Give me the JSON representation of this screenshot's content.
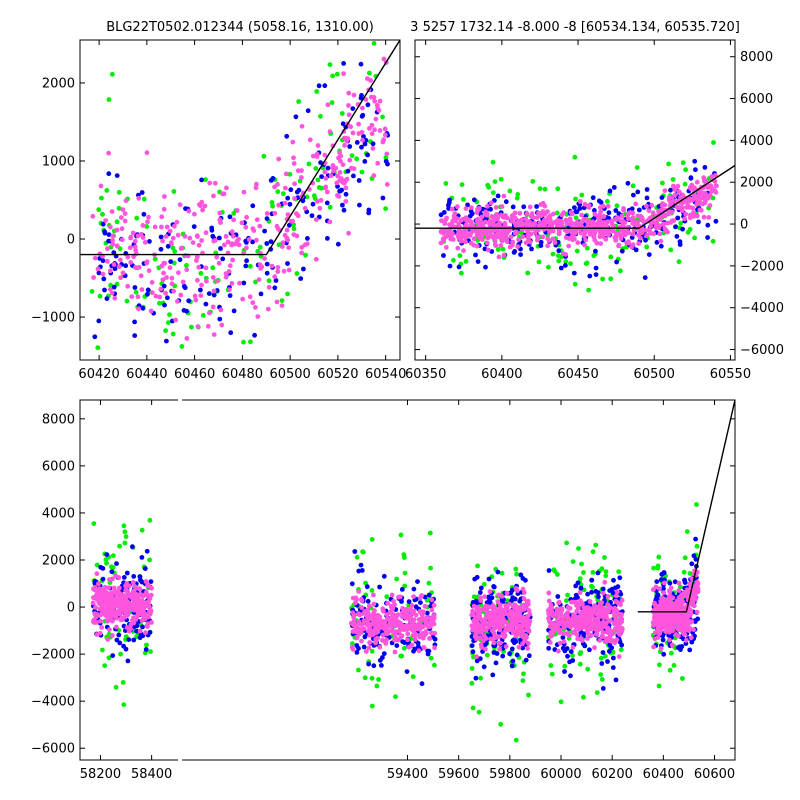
{
  "panels": {
    "top_left_title": "BLG22T0502.012344 (5058.16, 1310.00)",
    "top_right_title": "3 5257 1732.14 -8.000 -8 [60534.134, 60535.720]"
  },
  "colors": {
    "series_a": "#ff55dd",
    "series_b": "#0000ee",
    "series_c": "#00ee00",
    "model_line": "#000000"
  },
  "chart_data": [
    {
      "type": "scatter",
      "title": "BLG22T0502.012344 (5058.16, 1310.00)",
      "xlabel": "",
      "ylabel": "",
      "xlim": [
        60412,
        60546
      ],
      "ylim": [
        -1550,
        2550
      ],
      "xticks": [
        60420,
        60440,
        60460,
        60480,
        60500,
        60520,
        60540
      ],
      "yticks": [
        -1000,
        0,
        1000,
        2000
      ],
      "yaxis_side": "left",
      "model": {
        "x": [
          60412,
          60490,
          60546
        ],
        "y": [
          -200,
          -200,
          2550
        ]
      },
      "series": [
        {
          "color": "#00ee00",
          "n": 140,
          "seed": 11,
          "scatter": 650
        },
        {
          "color": "#0000ee",
          "n": 200,
          "seed": 23,
          "scatter": 500
        },
        {
          "color": "#ff55dd",
          "n": 360,
          "seed": 37,
          "scatter": 430
        }
      ]
    },
    {
      "type": "scatter",
      "title": "3 5257 1732.14 -8.000 -8 [60534.134, 60535.720]",
      "xlabel": "",
      "ylabel": "",
      "xlim": [
        60343,
        60553
      ],
      "ylim": [
        -6500,
        8800
      ],
      "xticks": [
        60350,
        60400,
        60450,
        60500,
        60550
      ],
      "yticks": [
        -6000,
        -4000,
        -2000,
        0,
        2000,
        4000,
        6000,
        8000
      ],
      "yaxis_side": "right",
      "model": {
        "x": [
          60343,
          60490,
          60553
        ],
        "y": [
          -200,
          -200,
          2800
        ]
      },
      "series": [
        {
          "color": "#00ee00",
          "n": 160,
          "seed": 41,
          "scatter": 1300
        },
        {
          "color": "#0000ee",
          "n": 260,
          "seed": 53,
          "scatter": 900
        },
        {
          "color": "#ff55dd",
          "n": 700,
          "seed": 67,
          "scatter": 450
        }
      ]
    },
    {
      "type": "scatter",
      "title": "",
      "xlabel": "",
      "ylabel": "",
      "xlim": [
        58120,
        60680
      ],
      "ylim": [
        -6500,
        8800
      ],
      "xticks": [
        58200,
        58400,
        59400,
        59600,
        59800,
        60000,
        60200,
        60400,
        60600
      ],
      "yticks": [
        -6000,
        -4000,
        -2000,
        0,
        2000,
        4000,
        6000,
        8000
      ],
      "yaxis_side": "left",
      "axis_break": [
        58480,
        59180
      ],
      "seasons": [
        {
          "x0": 58170,
          "x1": 58400,
          "mean": 100
        },
        {
          "x0": 59180,
          "x1": 59510,
          "mean": -700
        },
        {
          "x0": 59650,
          "x1": 59880,
          "mean": -600
        },
        {
          "x0": 59950,
          "x1": 60240,
          "mean": -600
        },
        {
          "x0": 60360,
          "x1": 60536,
          "mean": -300
        }
      ],
      "model": {
        "x": [
          60300,
          60490,
          60680
        ],
        "y": [
          -200,
          -200,
          8800
        ]
      },
      "series": [
        {
          "color": "#00ee00",
          "n": 380,
          "seed": 71,
          "scatter": 1600
        },
        {
          "color": "#0000ee",
          "n": 800,
          "seed": 83,
          "scatter": 900
        },
        {
          "color": "#ff55dd",
          "n": 1500,
          "seed": 97,
          "scatter": 500
        }
      ]
    }
  ]
}
